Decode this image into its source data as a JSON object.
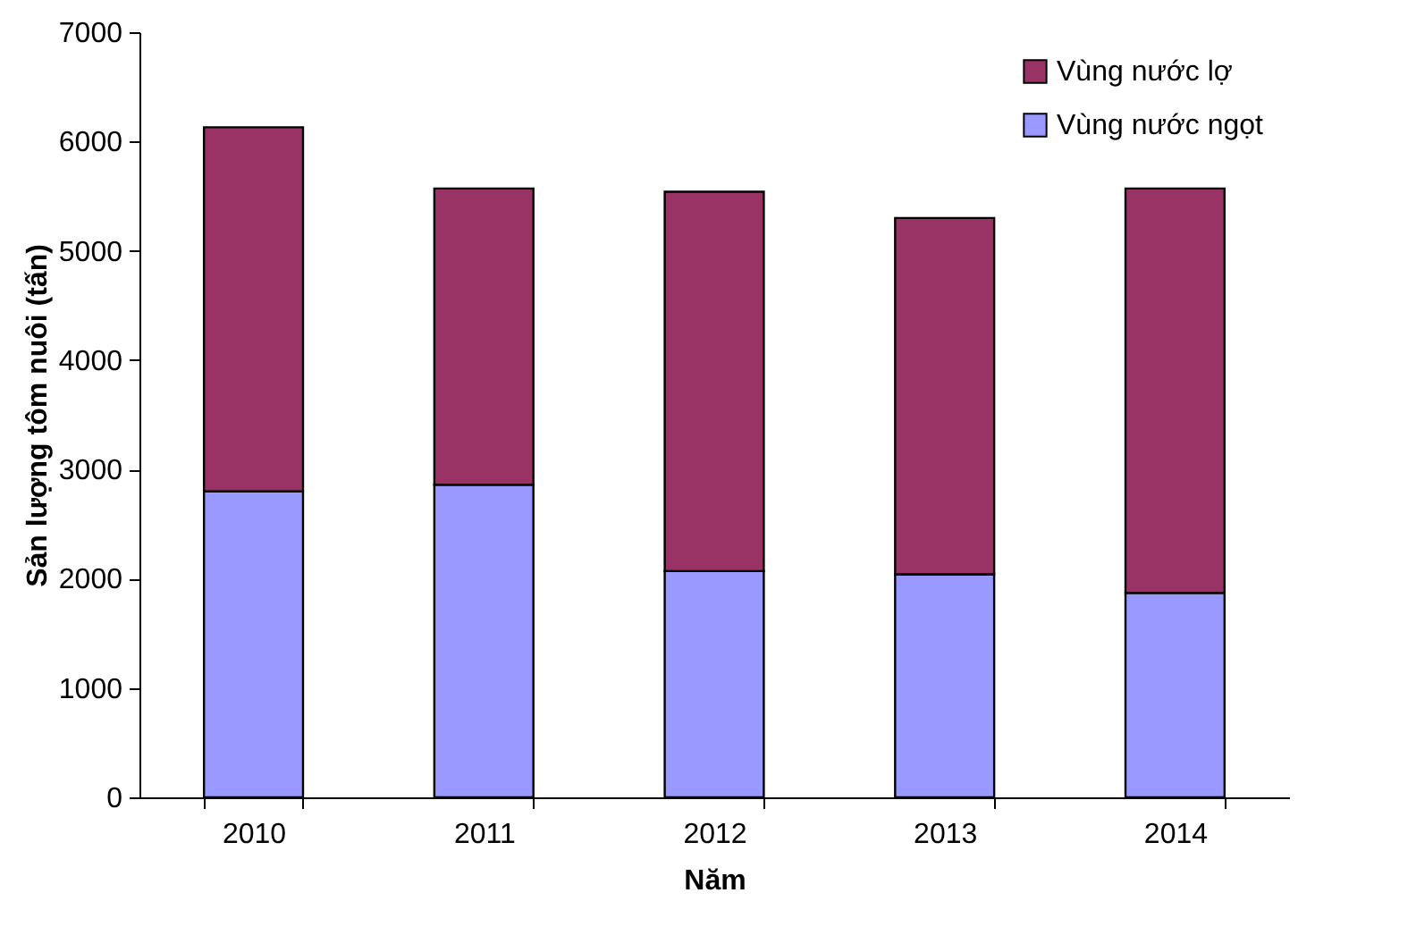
{
  "chart_data": {
    "type": "bar",
    "stacked": true,
    "xlabel": "Năm",
    "ylabel": "Sản lượng tôm nuôi (tấn)",
    "categories": [
      "2010",
      "2011",
      "2012",
      "2013",
      "2014"
    ],
    "series": [
      {
        "name": "Vùng nước ngọt",
        "color": "#9999ff",
        "values": [
          2800,
          2860,
          2070,
          2040,
          1870
        ]
      },
      {
        "name": "Vùng nước lợ",
        "color": "#993366",
        "values": [
          3330,
          2710,
          3470,
          3260,
          3700
        ]
      }
    ],
    "ylim": [
      0,
      7000
    ],
    "yticks": [
      0,
      1000,
      2000,
      3000,
      4000,
      5000,
      6000,
      7000
    ],
    "grid": false,
    "legend": "top right"
  }
}
